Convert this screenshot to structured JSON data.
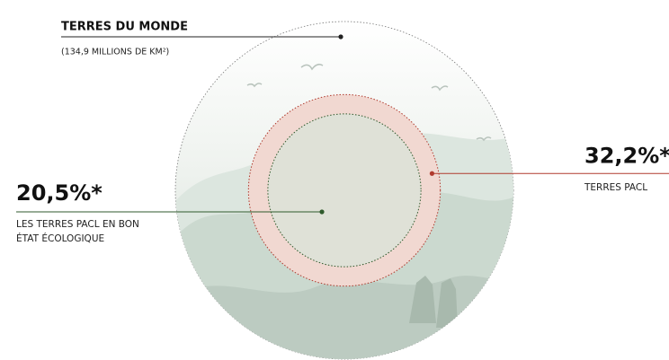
{
  "chart_data": {
    "type": "proportional-area",
    "title": "TERRES DU MONDE",
    "subtitle": "(134,9 MILLIONS DE KM²)",
    "categories": [
      "TERRES PACL",
      "LES TERRES PACL EN BON ÉTAT ÉCOLOGIQUE"
    ],
    "values": [
      32.2,
      20.5
    ],
    "value_labels": [
      "32,2%*",
      "20,5%*"
    ],
    "colors": [
      "#b03a2e",
      "#2f5a2c"
    ]
  }
}
